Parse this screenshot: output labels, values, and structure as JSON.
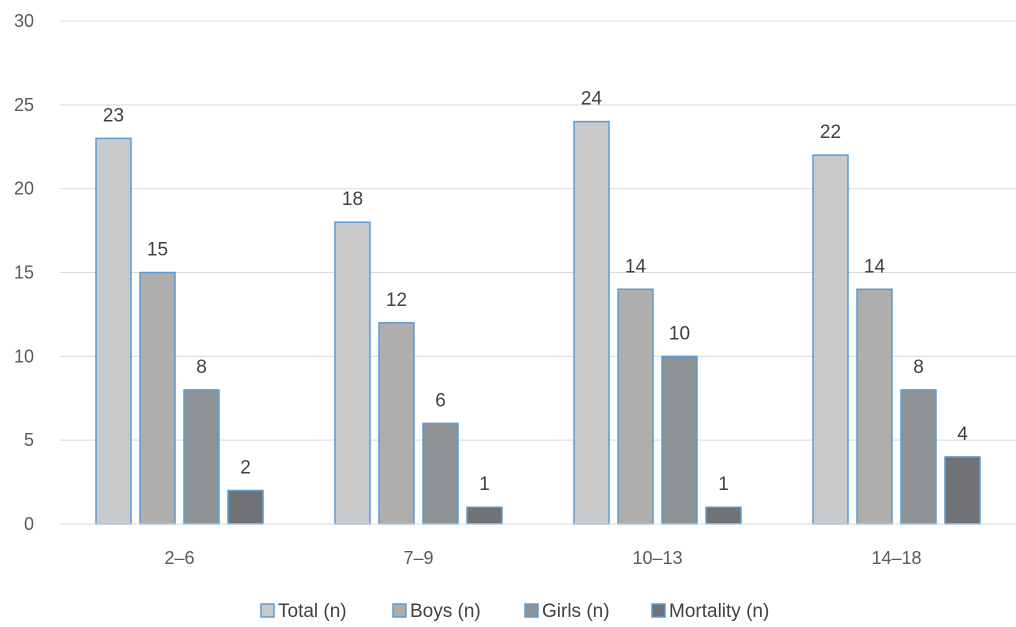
{
  "chart_data": {
    "type": "bar",
    "categories": [
      "2–6",
      "7–9",
      "10–13",
      "14–18"
    ],
    "series": [
      {
        "name": "Total (n)",
        "values": [
          23,
          18,
          24,
          22
        ],
        "color": "#C9CACB"
      },
      {
        "name": "Boys (n)",
        "values": [
          15,
          12,
          14,
          14
        ],
        "color": "#AFAEAC"
      },
      {
        "name": "Girls (n)",
        "values": [
          8,
          6,
          10,
          8
        ],
        "color": "#8F9294"
      },
      {
        "name": "Mortality (n)",
        "values": [
          2,
          1,
          1,
          4
        ],
        "color": "#717275"
      }
    ],
    "ylim": [
      0,
      30
    ],
    "yticks": [
      "0",
      "5",
      "10",
      "15",
      "20",
      "25",
      "30"
    ],
    "grid": true,
    "legend": "bottom",
    "bar_border_color": "#5B9BD5",
    "gridline_color": "#D9D9D9"
  }
}
